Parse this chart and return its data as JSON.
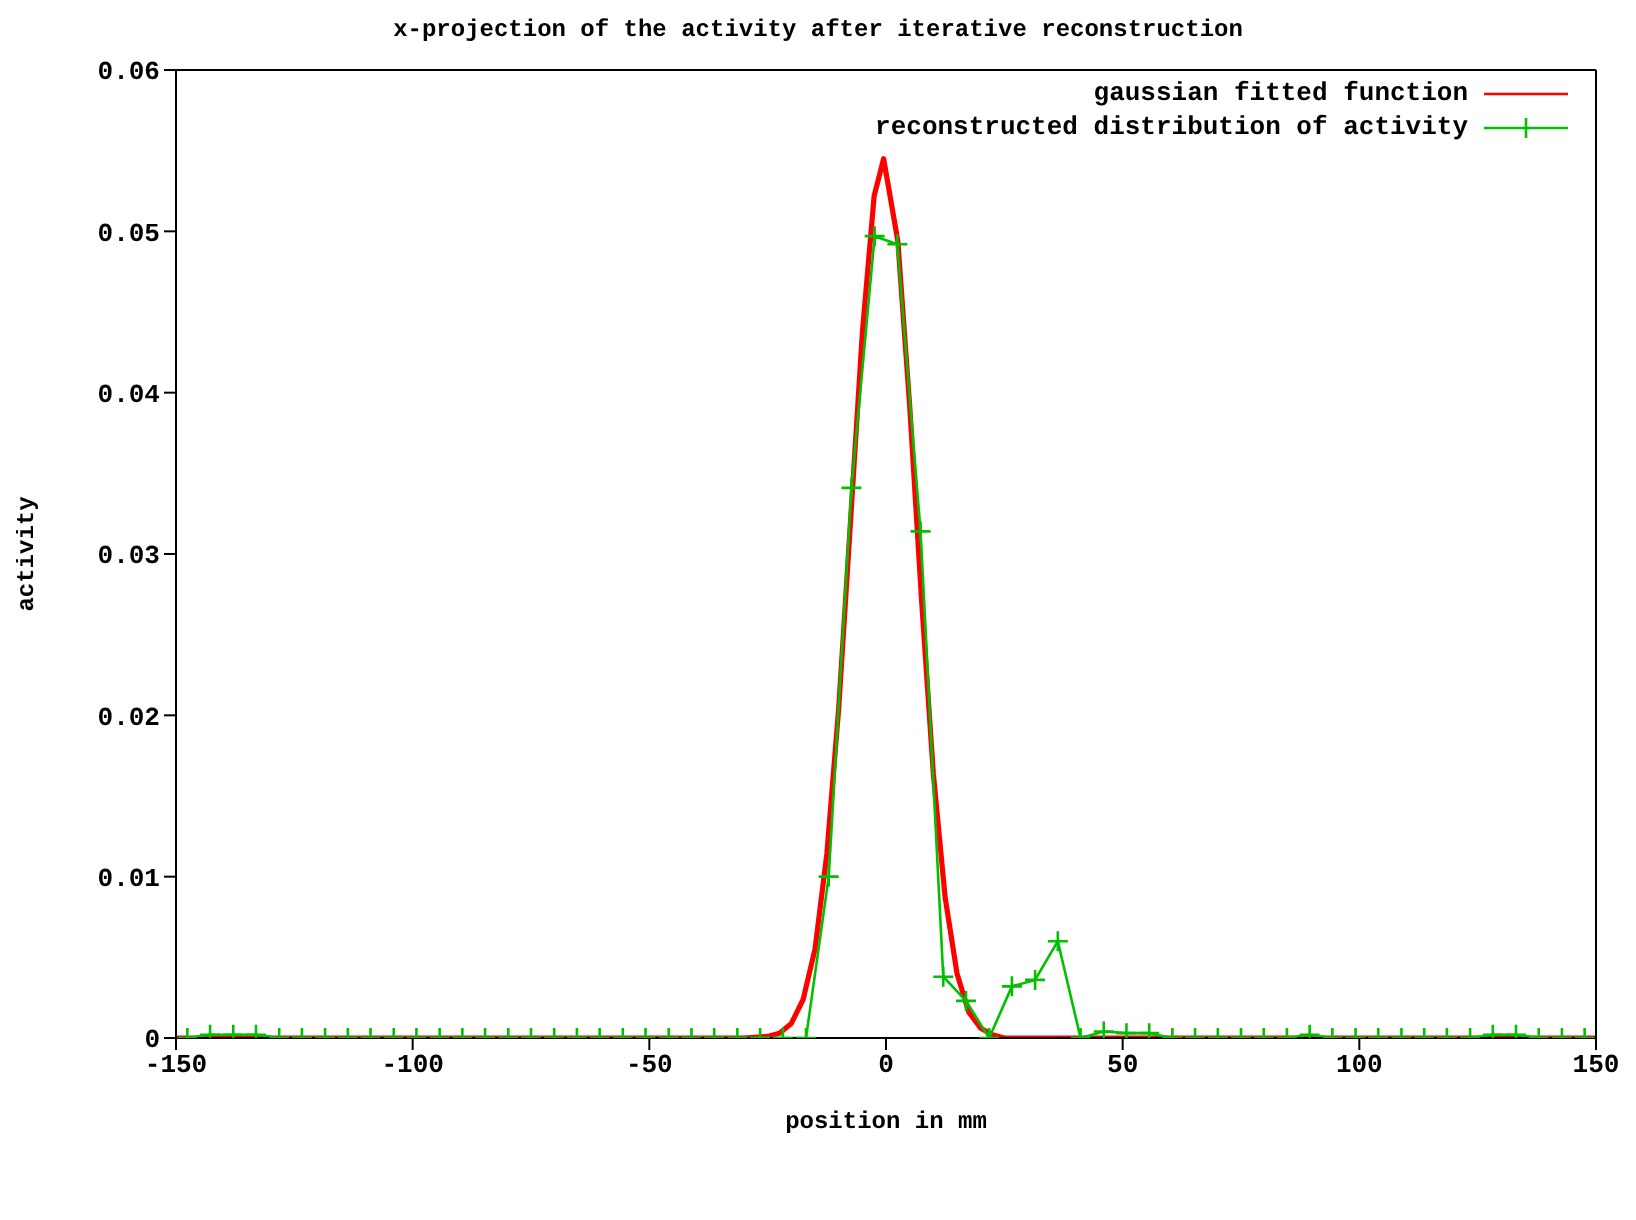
{
  "chart_data": {
    "type": "line",
    "title": "x-projection of the activity after iterative reconstruction",
    "xlabel": "position in mm",
    "ylabel": "activity",
    "xlim": [
      -150,
      150
    ],
    "xticks": [
      -150,
      -100,
      -50,
      0,
      50,
      100,
      150
    ],
    "ylim": [
      0,
      0.06
    ],
    "yticks": [
      0,
      0.01,
      0.02,
      0.03,
      0.04,
      0.05,
      0.06
    ],
    "legend": "top right",
    "line_style": "solid",
    "series": [
      {
        "name": "gaussian fitted function",
        "color": "#ff0000",
        "marker": "none",
        "x": [
          -150,
          -30,
          -25,
          -22.5,
          -20,
          -17.5,
          -15,
          -12.5,
          -10,
          -7.5,
          -5,
          -2.5,
          -0.5,
          2.5,
          5,
          7.5,
          10,
          12.5,
          15,
          17.5,
          20,
          22.5,
          25,
          30,
          150
        ],
        "values": [
          0,
          0,
          0.0001,
          0.0003,
          0.0009,
          0.0024,
          0.0055,
          0.0114,
          0.0204,
          0.032,
          0.0437,
          0.0522,
          0.0545,
          0.0494,
          0.0392,
          0.0272,
          0.0164,
          0.0087,
          0.004,
          0.0016,
          0.0006,
          0.0002,
          0,
          0,
          0
        ]
      },
      {
        "name": "reconstructed distribution of activity",
        "color": "#00c000",
        "marker": "cross",
        "x": [
          -147.6,
          -142.8,
          -137.9,
          -133.1,
          -128.2,
          -123.4,
          -118.5,
          -113.7,
          -108.9,
          -104,
          -99.2,
          -94.3,
          -89.5,
          -84.7,
          -79.8,
          -75,
          -70.1,
          -65.3,
          -60.5,
          -55.6,
          -50.8,
          -45.9,
          -41.1,
          -36.3,
          -31.4,
          -26.6,
          -21.8,
          -16.9,
          -12.1,
          -7.3,
          -2.4,
          2.4,
          7.3,
          12.1,
          16.9,
          21.8,
          26.6,
          31.5,
          36.3,
          41.1,
          46,
          50.8,
          55.6,
          60.5,
          65.3,
          70.1,
          75,
          79.8,
          84.7,
          89.5,
          94.3,
          99.2,
          104,
          108.9,
          113.7,
          118.5,
          123.4,
          128.2,
          133.1,
          137.9,
          142.8,
          147.6
        ],
        "values": [
          0,
          0.0002,
          0.0002,
          0.0002,
          0,
          0,
          0,
          0,
          0,
          0,
          0,
          0,
          0,
          0,
          0,
          0,
          0,
          0,
          0,
          0,
          0,
          0,
          0,
          0,
          0,
          0,
          0,
          0,
          0.01,
          0.0341,
          0.0497,
          0.0492,
          0.0314,
          0.0038,
          0.0023,
          0,
          0.0032,
          0.0036,
          0.006,
          0,
          0.0004,
          0.0003,
          0.0003,
          0,
          0,
          0,
          0,
          0,
          0,
          0.0002,
          0,
          0,
          0,
          0,
          0,
          0,
          0,
          0.0002,
          0.0002,
          0,
          0,
          0
        ]
      }
    ]
  }
}
